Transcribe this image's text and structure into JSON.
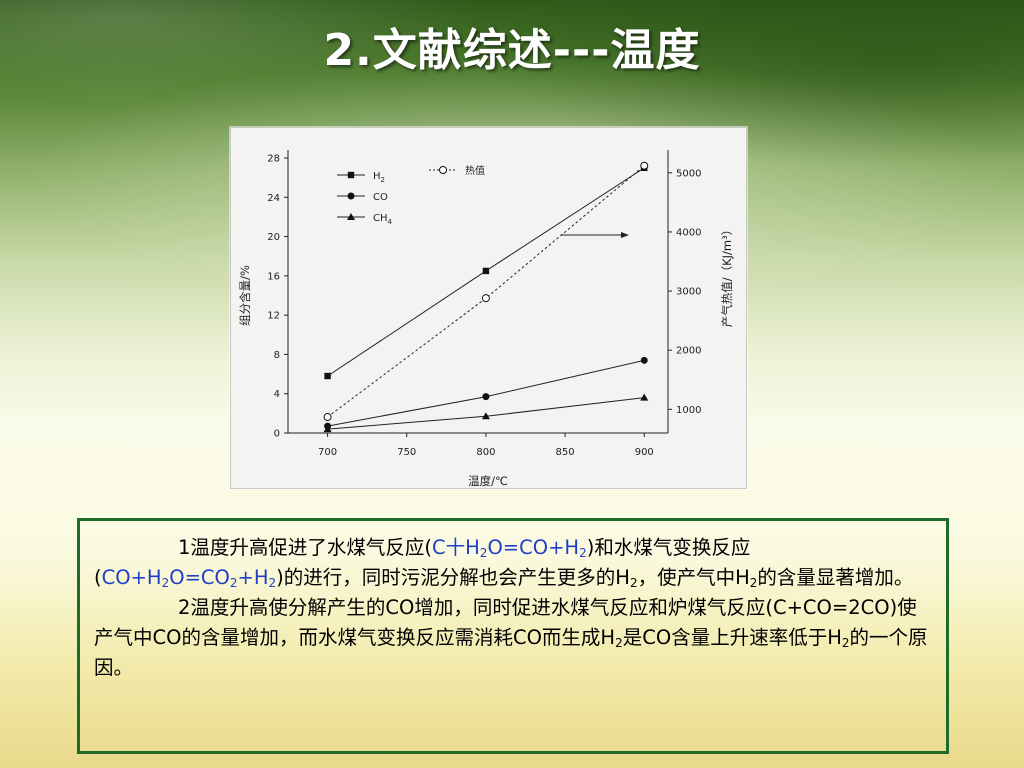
{
  "slide": {
    "title": "2.文献综述---温度"
  },
  "chart_data": {
    "type": "line",
    "title": "",
    "xlabel": "温度/℃",
    "ylabel": "组分含量/%",
    "y2label": "产气热值/（KJ/m³）",
    "x": [
      700,
      800,
      900
    ],
    "xlim": [
      675,
      915
    ],
    "xticks": [
      "700",
      "750",
      "800",
      "850",
      "900"
    ],
    "ylim": [
      0,
      28
    ],
    "yticks": [
      "0",
      "4",
      "8",
      "12",
      "16",
      "20",
      "24",
      "28"
    ],
    "y2lim": [
      600,
      5250
    ],
    "y2ticks": [
      "1000",
      "2000",
      "3000",
      "4000",
      "5000"
    ],
    "grid": false,
    "legend_position": "top-left",
    "series": [
      {
        "name": "H",
        "name_sub": "2",
        "axis": "left",
        "marker": "square",
        "style": "solid",
        "values": [
          5.8,
          16.5,
          27.0
        ]
      },
      {
        "name": "CO",
        "name_sub": "",
        "axis": "left",
        "marker": "circle",
        "style": "solid",
        "values": [
          0.7,
          3.7,
          7.4
        ]
      },
      {
        "name": "CH",
        "name_sub": "4",
        "axis": "left",
        "marker": "triangle",
        "style": "solid",
        "values": [
          0.4,
          1.7,
          3.6
        ]
      },
      {
        "name": "热值",
        "name_sub": "",
        "axis": "right",
        "marker": "open-circle",
        "style": "dotted",
        "values": [
          870,
          2880,
          5120
        ]
      }
    ]
  },
  "notes": {
    "p1_a": "1温度升高促进了水煤气反应(",
    "p1_r1a": "C十H",
    "p1_r1s1": "2",
    "p1_r1b": "O=CO+H",
    "p1_r1s2": "2",
    "p1_b": ")和水煤气变换反应",
    "p1_c": "(",
    "p1_r2a": "CO+H",
    "p1_r2s1": "2",
    "p1_r2b": "O=CO",
    "p1_r2s2": "2",
    "p1_r2c": "+H",
    "p1_r2s3": "2",
    "p1_d": ")的进行，同时污泥分解也会产生更多的H",
    "p1_ds": "2",
    "p1_e": "，使产气中H",
    "p1_es": "2",
    "p1_f": "的含量显著增加。",
    "p2_a": "2温度升高使分解产生的CO增加，同时促进水煤气反应和炉煤气反应(C+CO=2CO)使产气中CO的含量增加，而水煤气变换反应需消耗CO而生成H",
    "p2_as": "2",
    "p2_b": "是CO含量上升速率低于H",
    "p2_bs": "2",
    "p2_c": "的一个原因。"
  }
}
